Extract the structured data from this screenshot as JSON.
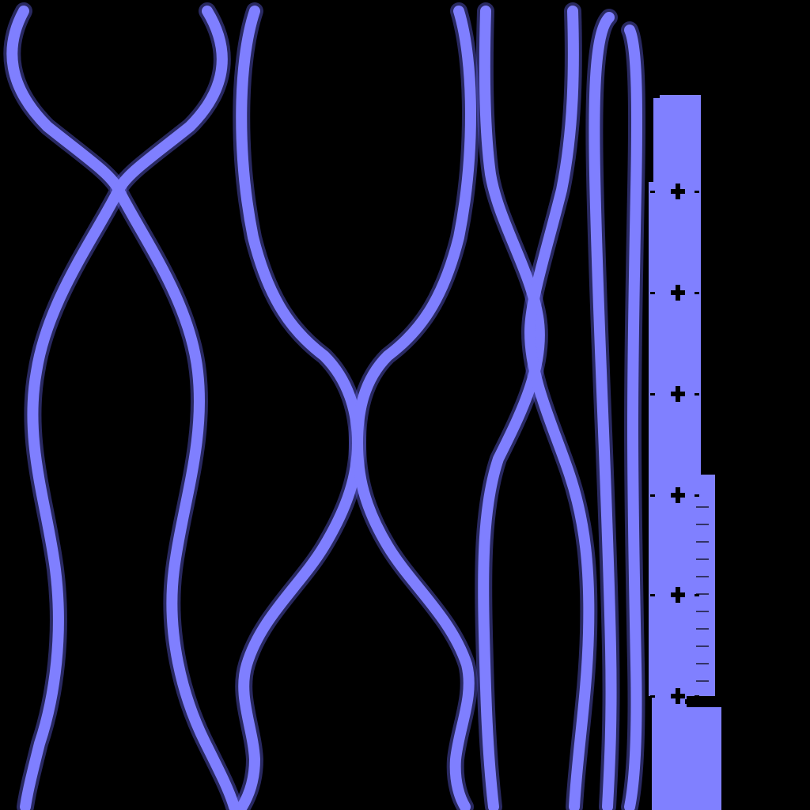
{
  "scene": {
    "background_color": "#000000",
    "strand_color": "#7f7fff",
    "strand_glow_color": "#5a5ad8",
    "ruler_color": "#8080ff",
    "ruler_tick_color": "#000000"
  }
}
